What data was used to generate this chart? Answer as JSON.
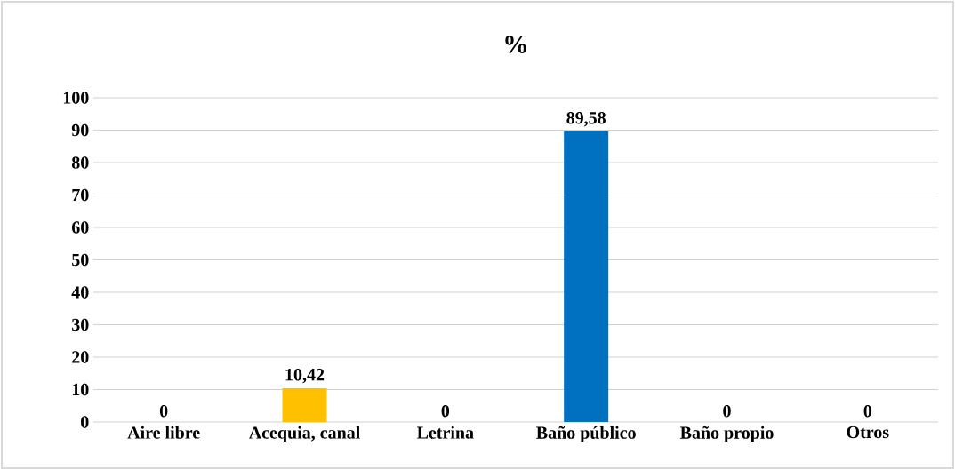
{
  "chart_data": {
    "type": "bar",
    "title": "%",
    "categories": [
      "Aire libre",
      "Acequia, canal",
      "Letrina",
      "Baño público",
      "Baño propio",
      "Otros"
    ],
    "values": [
      0,
      10.42,
      0,
      89.58,
      0,
      0
    ],
    "value_labels": [
      "0",
      "10,42",
      "0",
      "89,58",
      "0",
      "0"
    ],
    "colors": [
      "#0070c0",
      "#ffc000",
      "#0070c0",
      "#0070c0",
      "#0070c0",
      "#0070c0"
    ],
    "ylim": [
      0,
      100
    ],
    "yticks": [
      0,
      10,
      20,
      30,
      40,
      50,
      60,
      70,
      80,
      90,
      100
    ],
    "grid": "y"
  }
}
